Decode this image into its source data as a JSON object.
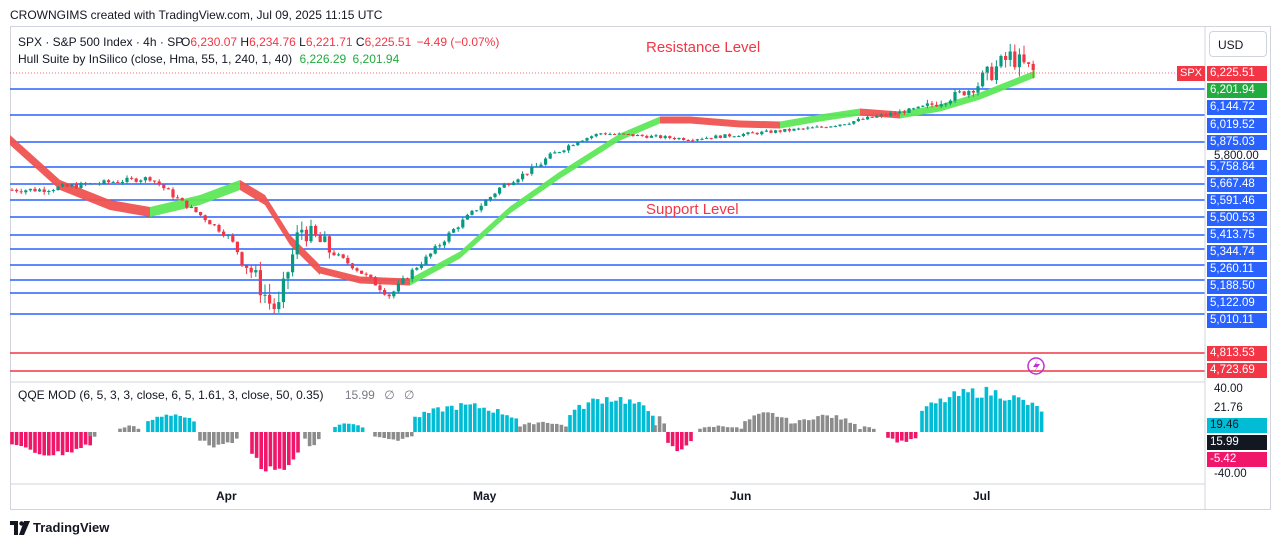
{
  "header": {
    "caption": "CROWNGIMS created with TradingView.com, Jul 09, 2025 11:15 UTC"
  },
  "legend": {
    "symbol_line": "SPX · S&P 500 Index · 4h · SP",
    "ohlc": [
      {
        "k": "O",
        "v": "6,230.07"
      },
      {
        "k": "H",
        "v": "6,234.76"
      },
      {
        "k": "L",
        "v": "6,221.71"
      },
      {
        "k": "C",
        "v": "6,225.51"
      }
    ],
    "change": "−4.49 (−0.07%)",
    "indicator_name": "Hull Suite by InSilico (close, Hma, 55, 1, 240, 1, 40)",
    "indicator_v1": "6,226.29",
    "indicator_v2": "6,201.94",
    "qqe_name": "QQE MOD (6, 5, 3, 3, close, 6, 5, 1.61, 3, close, 50, 0.35)",
    "qqe_value": "15.99",
    "qqe_na": "∅",
    "qqe_na2": "∅"
  },
  "annotations": {
    "resistance": "Resistance Level",
    "support": "Support Level"
  },
  "currency_button": "USD",
  "footer_logo": "TradingView",
  "colors": {
    "blue_line": "#2962ff",
    "red_line": "#f23645",
    "green": "#5ee858",
    "red": "#ef5350",
    "teal": "#26a69a",
    "cyan_bar": "#00bcd4",
    "gray_bar": "#8c8c8c",
    "pink_bar": "#f0166a",
    "candle_down": "#f23645",
    "candle_up": "#089981"
  },
  "chart_data": {
    "type": "line",
    "title": "SPX · S&P 500 Index · 4h · SP",
    "x_ticks": [
      "Apr",
      "May",
      "Jun",
      "Jul"
    ],
    "price_axis": {
      "ticks": [
        "5,800.00"
      ],
      "levels": [
        {
          "value": 6144.72,
          "label": "6,144.72",
          "kind": "support-resistance"
        },
        {
          "value": 6019.52,
          "label": "6,019.52",
          "kind": "support-resistance"
        },
        {
          "value": 5875.03,
          "label": "5,875.03",
          "kind": "support-resistance"
        },
        {
          "value": 5758.84,
          "label": "5,758.84",
          "kind": "support-resistance"
        },
        {
          "value": 5667.48,
          "label": "5,667.48",
          "kind": "support-resistance"
        },
        {
          "value": 5591.46,
          "label": "5,591.46",
          "kind": "support-resistance"
        },
        {
          "value": 5500.53,
          "label": "5,500.53",
          "kind": "support-resistance"
        },
        {
          "value": 5413.75,
          "label": "5,413.75",
          "kind": "support-resistance"
        },
        {
          "value": 5344.74,
          "label": "5,344.74",
          "kind": "support-resistance"
        },
        {
          "value": 5260.11,
          "label": "5,260.11",
          "kind": "support-resistance"
        },
        {
          "value": 5188.5,
          "label": "5,188.50",
          "kind": "support-resistance"
        },
        {
          "value": 5122.09,
          "label": "5,122.09",
          "kind": "support-resistance"
        },
        {
          "value": 5010.11,
          "label": "5,010.11",
          "kind": "support-resistance"
        },
        {
          "value": 4813.53,
          "label": "4,813.53",
          "kind": "red-level"
        },
        {
          "value": 4723.69,
          "label": "4,723.69",
          "kind": "red-level"
        }
      ],
      "price_tags": [
        {
          "label": "6,225.51",
          "name": "SPX",
          "color": "#f23645"
        },
        {
          "label": "6,201.94",
          "color": "#22ab3f"
        }
      ]
    },
    "series": [
      {
        "name": "SPX",
        "type": "candles",
        "approx_close_by_period": [
          {
            "x": "mid-Mar",
            "y": 5640
          },
          {
            "x": "late-Mar",
            "y": 5700
          },
          {
            "x": "early-Apr",
            "y": 5400
          },
          {
            "x": "Apr 7",
            "y": 5070
          },
          {
            "x": "Apr 9",
            "y": 5450
          },
          {
            "x": "Apr 21",
            "y": 5150
          },
          {
            "x": "early-May",
            "y": 5650
          },
          {
            "x": "mid-May",
            "y": 5950
          },
          {
            "x": "late-May",
            "y": 5900
          },
          {
            "x": "mid-Jun",
            "y": 6000
          },
          {
            "x": "late-Jun",
            "y": 6150
          },
          {
            "x": "early-Jul",
            "y": 6250
          },
          {
            "x": "Jul 9",
            "y": 6225.51
          }
        ]
      },
      {
        "name": "Hull Suite by InSilico",
        "type": "band",
        "approx_values": [
          {
            "x": "mid-Mar",
            "y": 5880
          },
          {
            "x": "late-Mar",
            "y": 5620
          },
          {
            "x": "early-Apr",
            "y": 5690
          },
          {
            "x": "Apr 9",
            "y": 5280
          },
          {
            "x": "Apr 21",
            "y": 5180
          },
          {
            "x": "mid-May",
            "y": 5860
          },
          {
            "x": "late-May",
            "y": 5950
          },
          {
            "x": "mid-Jun",
            "y": 5990
          },
          {
            "x": "Jul 9",
            "y": 6201.94
          }
        ]
      }
    ],
    "qqe": {
      "ticks": [
        "40.00",
        "21.76",
        "-40.00"
      ],
      "value_tags": [
        {
          "label": "19.46",
          "color": "#00bcd4"
        },
        {
          "label": "15.99",
          "color": "#131722"
        },
        {
          "label": "-5.42",
          "color": "#f0166a"
        }
      ]
    }
  }
}
